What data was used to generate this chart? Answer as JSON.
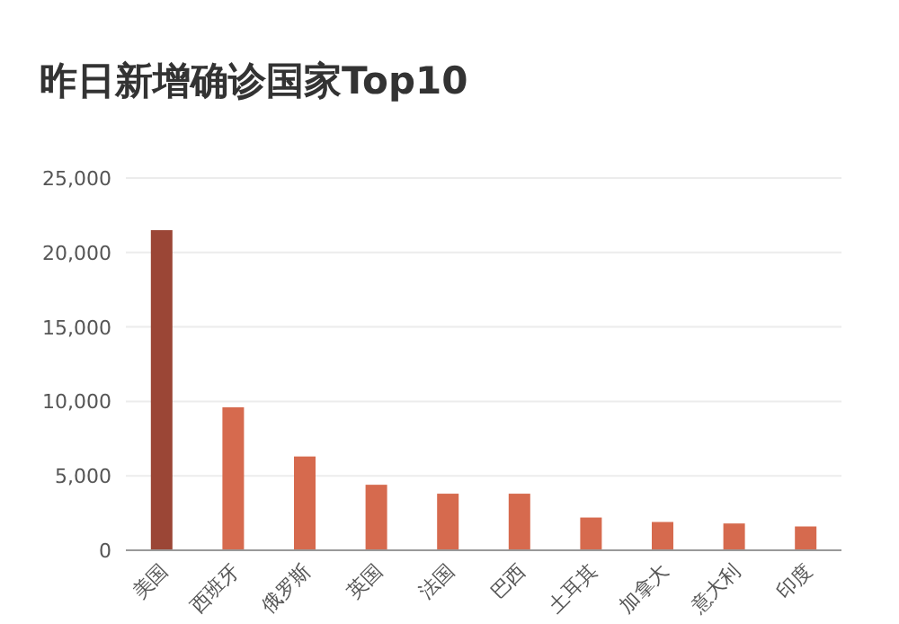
{
  "chart_data": {
    "type": "bar",
    "title": "昨日新增确诊国家Top10",
    "categories": [
      "美国",
      "西班牙",
      "俄罗斯",
      "英国",
      "法国",
      "巴西",
      "土耳其",
      "加拿大",
      "意大利",
      "印度"
    ],
    "values": [
      21500,
      9600,
      6300,
      4400,
      3800,
      3800,
      2200,
      1900,
      1800,
      1600
    ],
    "colors": [
      "#9b4636",
      "#d66a4e",
      "#d66a4e",
      "#d66a4e",
      "#d66a4e",
      "#d66a4e",
      "#d66a4e",
      "#d66a4e",
      "#d66a4e",
      "#d66a4e"
    ],
    "ylim": [
      0,
      25000
    ],
    "yticks": [
      {
        "value": 0,
        "label": "0"
      },
      {
        "value": 5000,
        "label": "5,000"
      },
      {
        "value": 10000,
        "label": "10,000"
      },
      {
        "value": 15000,
        "label": "15,000"
      },
      {
        "value": 20000,
        "label": "20,000"
      },
      {
        "value": 25000,
        "label": "25,000"
      }
    ],
    "grid": "y"
  }
}
